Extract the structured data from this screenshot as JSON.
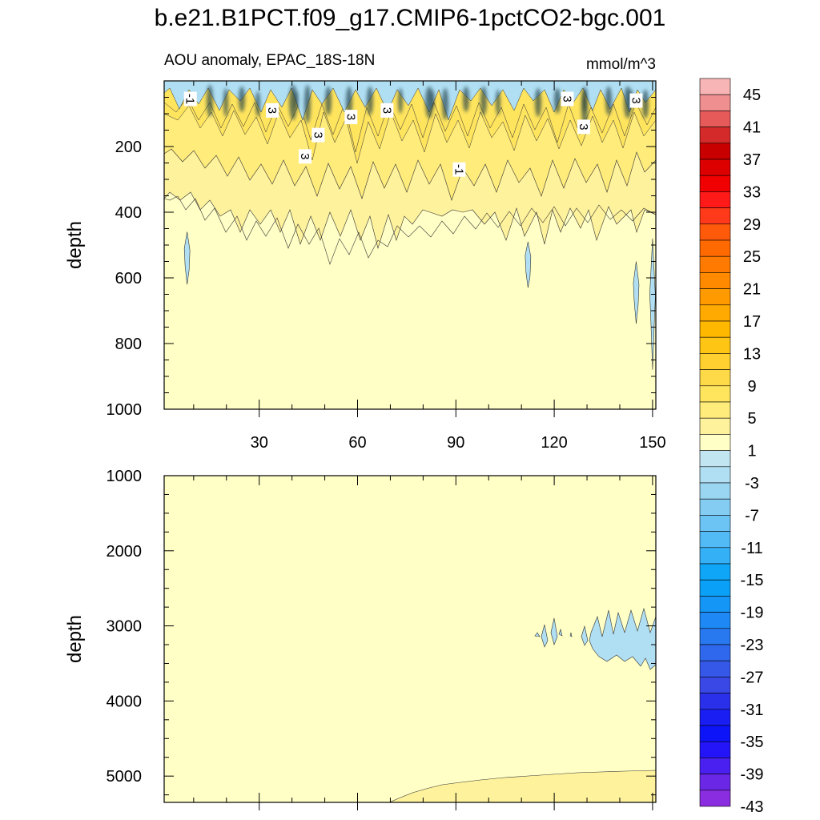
{
  "chart_data": {
    "type": "contour",
    "title": "b.e21.B1PCT.f09_g17.CMIP6-1pctCO2-bgc.001",
    "subtitle_left": "AOU anomaly, EPAC_18S-18N",
    "subtitle_right": "mmol/m^3",
    "ylabel": "depth",
    "x_range": [
      1,
      151
    ],
    "x_ticks": [
      30,
      60,
      90,
      120,
      150
    ],
    "x_tick_labels": [
      "30",
      "60",
      "90",
      "120",
      "150"
    ],
    "top_panel": {
      "y_range": [
        0,
        1000
      ],
      "y_ticks": [
        200,
        400,
        600,
        800,
        1000
      ],
      "y_tick_labels": [
        "200",
        "400",
        "600",
        "800",
        "1000"
      ],
      "contour_labels": [
        {
          "text": "-1",
          "x": 9,
          "depth": 55
        },
        {
          "text": "3",
          "x": 34,
          "depth": 90
        },
        {
          "text": "3",
          "x": 48,
          "depth": 165
        },
        {
          "text": "3",
          "x": 44,
          "depth": 230
        },
        {
          "text": "3",
          "x": 58,
          "depth": 110
        },
        {
          "text": "3",
          "x": 69,
          "depth": 90
        },
        {
          "text": "-1",
          "x": 91,
          "depth": 270
        },
        {
          "text": "3",
          "x": 124,
          "depth": 55
        },
        {
          "text": "3",
          "x": 129,
          "depth": 140
        },
        {
          "text": "3",
          "x": 145,
          "depth": 60
        }
      ],
      "negative_patches": [
        {
          "x": 8,
          "depth_top": 460,
          "depth_bottom": 620
        },
        {
          "x": 112,
          "depth_top": 490,
          "depth_bottom": 630
        },
        {
          "x": 145,
          "depth_top": 550,
          "depth_bottom": 740
        },
        {
          "x": 150,
          "depth_top": 480,
          "depth_bottom": 880
        }
      ]
    },
    "bottom_panel": {
      "y_range": [
        1000,
        5350
      ],
      "y_ticks": [
        1000,
        2000,
        3000,
        4000,
        5000
      ],
      "y_tick_labels": [
        "1000",
        "2000",
        "3000",
        "4000",
        "5000"
      ],
      "negative_region": {
        "x_start": 115,
        "x_end": 151,
        "depth_top": 2800,
        "depth_bottom": 3550
      },
      "bottom_positive_boundary": [
        [
          70,
          5350
        ],
        [
          85,
          5180
        ],
        [
          100,
          5080
        ],
        [
          115,
          5020
        ],
        [
          130,
          4980
        ],
        [
          151,
          4940
        ]
      ]
    },
    "colorbar": {
      "labels": [
        "45",
        "41",
        "37",
        "33",
        "29",
        "25",
        "21",
        "17",
        "13",
        "9",
        "5",
        "1",
        "-3",
        "-7",
        "-11",
        "-15",
        "-19",
        "-23",
        "-27",
        "-31",
        "-35",
        "-39",
        "-43"
      ],
      "colors": [
        "#f7b5b5",
        "#ef8f8f",
        "#e65a5a",
        "#d42a2a",
        "#c80000",
        "#dd0000",
        "#f00000",
        "#ff1a1a",
        "#ff3a1a",
        "#ff5a0a",
        "#ff6a00",
        "#ff7a00",
        "#ff8a00",
        "#ff9a00",
        "#ffaa00",
        "#ffb800",
        "#ffc514",
        "#ffd030",
        "#ffda48",
        "#ffe45e",
        "#ffec7a",
        "#fff29c",
        "#ffffc6",
        "#c2e5f2",
        "#b0def2",
        "#9ad6f2",
        "#84ccf2",
        "#6cc4f4",
        "#52baf4",
        "#34b0f6",
        "#10a6f8",
        "#0aa0f8",
        "#1496f6",
        "#1e88f4",
        "#2878f0",
        "#2f68ec",
        "#3558e8",
        "#3a48e6",
        "#2a30ea",
        "#1a1ef2",
        "#0e14f8",
        "#2414f8",
        "#4a20f0",
        "#6a28e6",
        "#8a2ce0"
      ]
    }
  }
}
